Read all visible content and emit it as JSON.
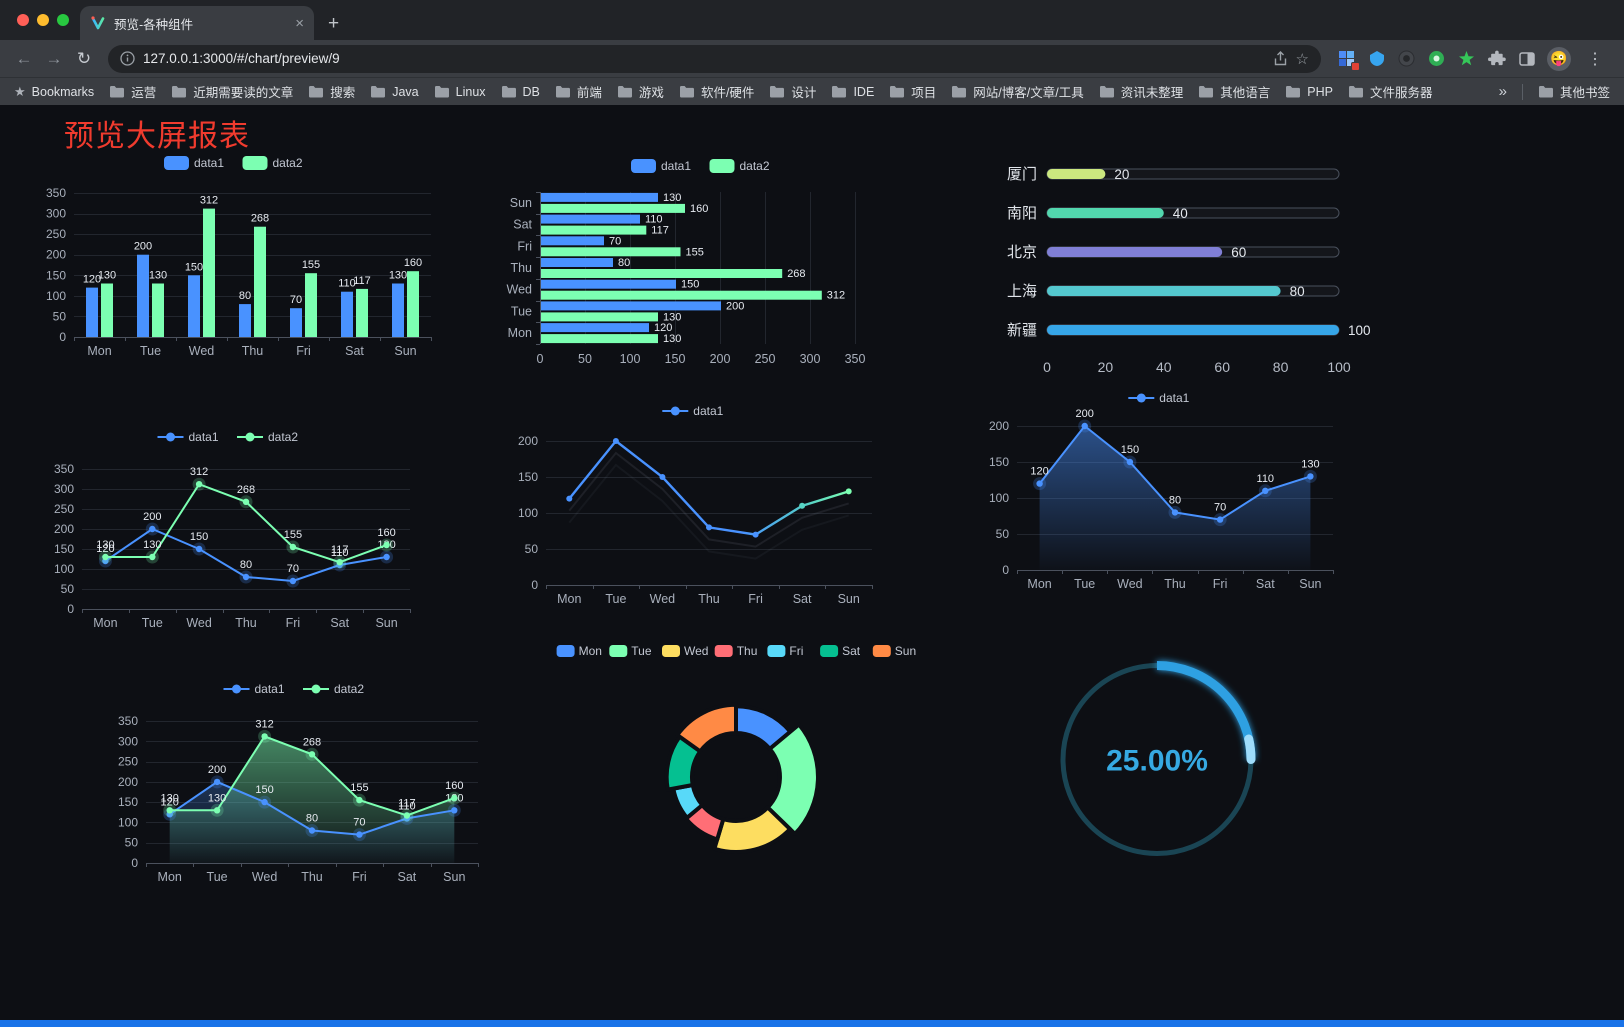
{
  "window": {
    "tab_title": "预览-各种组件",
    "url": "127.0.0.1:3000/#/chart/preview/9",
    "bookmarks_label": "Bookmarks",
    "bookmarks": [
      "运营",
      "近期需要读的文章",
      "搜索",
      "Java",
      "Linux",
      "DB",
      "前端",
      "游戏",
      "软件/硬件",
      "设计",
      "IDE",
      "项目",
      "网站/博客/文章/工具",
      "资讯未整理",
      "其他语言",
      "PHP",
      "文件服务器"
    ],
    "overflow_chevron": "»",
    "other_bookmarks": "其他书签"
  },
  "icons": {
    "back": "←",
    "forward": "→",
    "reload": "↻",
    "tab_close": "×",
    "new_tab": "+",
    "menu": "⋮",
    "bookmark_star": "☆",
    "bookmarks_bar_star": "★",
    "avatar_emoji": "😜"
  },
  "page": {
    "title": "预览大屏报表",
    "title_color": "#f03b2e",
    "background": "#0d0f14",
    "bottom_bar_color": "#1a73e8"
  },
  "palette": {
    "blue": "#4992ff",
    "green": "#7cffb2",
    "yellow": "#fddd60",
    "red": "#ff6e76",
    "light_blue": "#58d9f9",
    "teal": "#05c091",
    "orange": "#ff8a45"
  },
  "chart_data": [
    {
      "id": "bar-grouped",
      "type": "bar",
      "orientation": "vertical",
      "categories": [
        "Mon",
        "Tue",
        "Wed",
        "Thu",
        "Fri",
        "Sat",
        "Sun"
      ],
      "series": [
        {
          "name": "data1",
          "color": "#4992ff",
          "values": [
            120,
            200,
            150,
            80,
            70,
            110,
            130
          ]
        },
        {
          "name": "data2",
          "color": "#7cffb2",
          "values": [
            130,
            130,
            312,
            268,
            155,
            117,
            160
          ]
        }
      ],
      "ylim": [
        0,
        350
      ],
      "ytick": 50,
      "grid": true,
      "point_labels": true,
      "legend_position": "top"
    },
    {
      "id": "bar-horizontal",
      "type": "bar",
      "orientation": "horizontal",
      "categories": [
        "Mon",
        "Tue",
        "Wed",
        "Thu",
        "Fri",
        "Sat",
        "Sun"
      ],
      "series": [
        {
          "name": "data1",
          "color": "#4992ff",
          "values": [
            120,
            200,
            150,
            80,
            70,
            110,
            130
          ]
        },
        {
          "name": "data2",
          "color": "#7cffb2",
          "values": [
            130,
            130,
            312,
            268,
            155,
            117,
            160
          ]
        }
      ],
      "xlim": [
        0,
        350
      ],
      "xtick": 50,
      "grid": true,
      "point_labels": true,
      "legend_position": "top"
    },
    {
      "id": "capsule-bars",
      "type": "bar",
      "subtype": "capsule",
      "rows": [
        {
          "label": "厦门",
          "value": 20,
          "color": "#cbe87f"
        },
        {
          "label": "南阳",
          "value": 40,
          "color": "#52d7ae"
        },
        {
          "label": "北京",
          "value": 60,
          "color": "#807fd6"
        },
        {
          "label": "上海",
          "value": 80,
          "color": "#54c8cf"
        },
        {
          "label": "新疆",
          "value": 100,
          "color": "#36a6e8"
        }
      ],
      "xlim": [
        0,
        100
      ],
      "xticks": [
        0,
        20,
        40,
        60,
        80,
        100
      ]
    },
    {
      "id": "line-two-series",
      "type": "line",
      "categories": [
        "Mon",
        "Tue",
        "Wed",
        "Thu",
        "Fri",
        "Sat",
        "Sun"
      ],
      "series": [
        {
          "name": "data1",
          "color": "#4992ff",
          "values": [
            120,
            200,
            150,
            80,
            70,
            110,
            130
          ]
        },
        {
          "name": "data2",
          "color": "#7cffb2",
          "values": [
            130,
            130,
            312,
            268,
            155,
            117,
            160
          ]
        }
      ],
      "ylim": [
        0,
        350
      ],
      "ytick": 50,
      "point_labels": true,
      "legend_position": "top"
    },
    {
      "id": "line-gradient",
      "type": "line",
      "categories": [
        "Mon",
        "Tue",
        "Wed",
        "Thu",
        "Fri",
        "Sat",
        "Sun"
      ],
      "series": [
        {
          "name": "data1",
          "color": "#4992ff",
          "gradient_to": "#7cffb2",
          "values": [
            120,
            200,
            150,
            80,
            70,
            110,
            130
          ]
        }
      ],
      "ylim": [
        0,
        200
      ],
      "ytick": 50,
      "point_labels": false,
      "legend_position": "top"
    },
    {
      "id": "area-single",
      "type": "area",
      "categories": [
        "Mon",
        "Tue",
        "Wed",
        "Thu",
        "Fri",
        "Sat",
        "Sun"
      ],
      "series": [
        {
          "name": "data1",
          "color": "#4992ff",
          "values": [
            120,
            200,
            150,
            80,
            70,
            110,
            130
          ]
        }
      ],
      "ylim": [
        0,
        200
      ],
      "ytick": 50,
      "point_labels": true,
      "legend_position": "top"
    },
    {
      "id": "area-two-series",
      "type": "area",
      "categories": [
        "Mon",
        "Tue",
        "Wed",
        "Thu",
        "Fri",
        "Sat",
        "Sun"
      ],
      "series": [
        {
          "name": "data1",
          "color": "#4992ff",
          "values": [
            120,
            200,
            150,
            80,
            70,
            110,
            130
          ]
        },
        {
          "name": "data2",
          "color": "#7cffb2",
          "values": [
            130,
            130,
            312,
            268,
            155,
            117,
            160
          ]
        }
      ],
      "ylim": [
        0,
        350
      ],
      "ytick": 50,
      "point_labels": true,
      "legend_position": "top"
    },
    {
      "id": "donut-rose",
      "type": "pie",
      "rose": true,
      "donut": true,
      "categories": [
        "Mon",
        "Tue",
        "Wed",
        "Thu",
        "Fri",
        "Sat",
        "Sun"
      ],
      "values": [
        120,
        200,
        150,
        80,
        70,
        110,
        130
      ],
      "colors": [
        "#4992ff",
        "#7cffb2",
        "#fddd60",
        "#ff6e76",
        "#58d9f9",
        "#05c091",
        "#ff8a45"
      ],
      "legend_position": "top"
    },
    {
      "id": "gauge-progress",
      "type": "gauge",
      "value": 25,
      "max": 100,
      "label": "25.00%",
      "color": "#2da0e2"
    }
  ]
}
